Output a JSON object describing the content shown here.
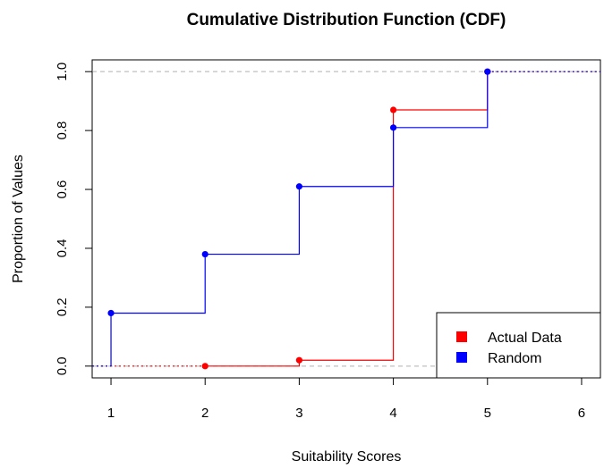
{
  "chart_data": {
    "type": "line",
    "step": true,
    "title": "Cumulative Distribution Function (CDF)",
    "xlabel": "Suitability Scores",
    "ylabel": "Proportion of Values",
    "xlim": [
      0.8,
      6.2
    ],
    "ylim": [
      -0.04,
      1.04
    ],
    "x_ticks": [
      1,
      2,
      3,
      4,
      5,
      6
    ],
    "y_ticks": [
      0.0,
      0.2,
      0.4,
      0.6,
      0.8,
      1.0
    ],
    "y_tick_labels": [
      "0.0",
      "0.2",
      "0.4",
      "0.6",
      "0.8",
      "1.0"
    ],
    "reference_lines": [
      0,
      1
    ],
    "legend_position": "bottom-right",
    "series": [
      {
        "name": "Actual Data",
        "color": "#ff0000",
        "x": [
          2,
          3,
          4,
          5
        ],
        "y": [
          0.0,
          0.02,
          0.87,
          1.0
        ]
      },
      {
        "name": "Random",
        "color": "#0000ff",
        "x": [
          1,
          2,
          3,
          4,
          5
        ],
        "y": [
          0.18,
          0.38,
          0.61,
          0.81,
          1.0
        ]
      }
    ]
  }
}
